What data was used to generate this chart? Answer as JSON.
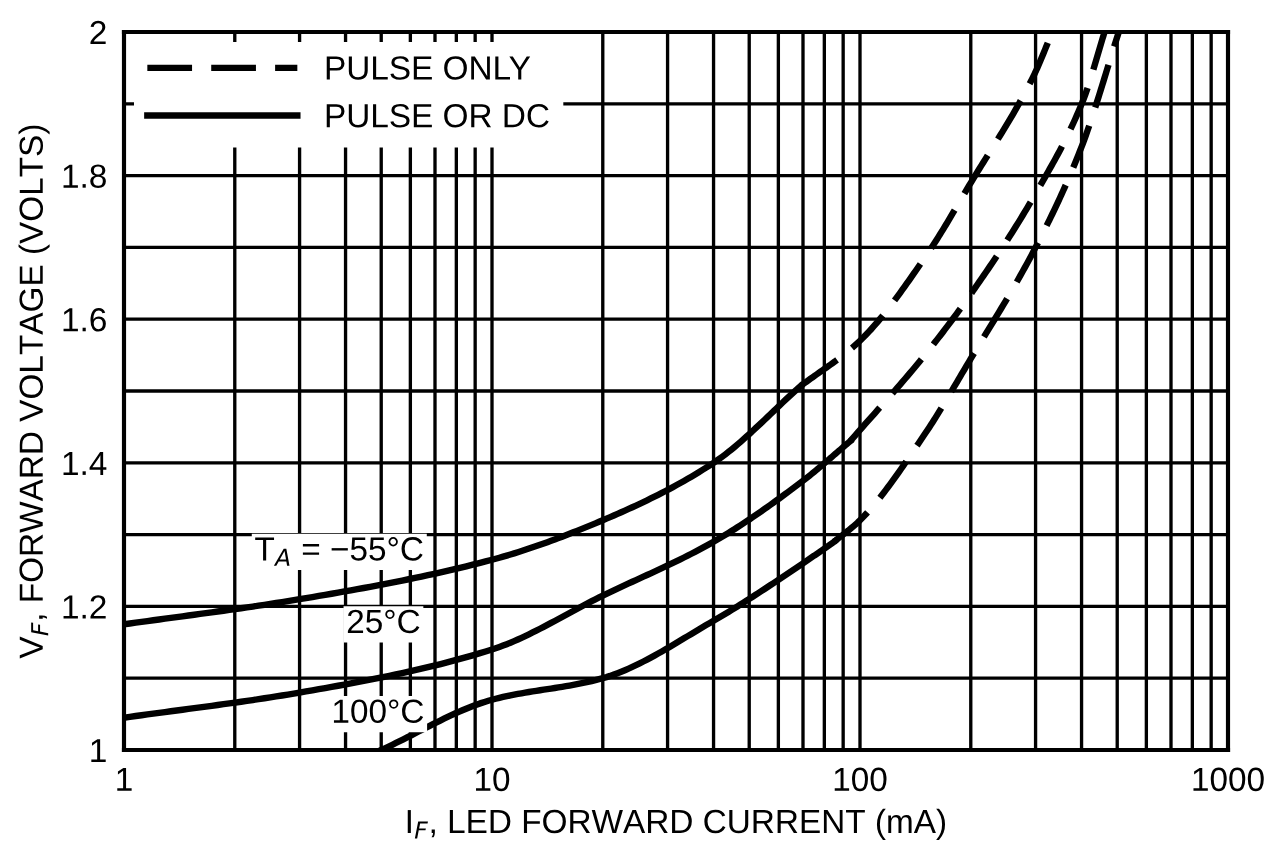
{
  "chart_data": {
    "type": "line",
    "xlabel": "I$_{F}$, LED FORWARD CURRENT (mA)",
    "ylabel": "V$_{F}$, FORWARD VOLTAGE (VOLTS)",
    "log": "x",
    "xlim": [
      1,
      1000
    ],
    "ylim": [
      1,
      2
    ],
    "xticks": [
      1,
      {
        "value": 2,
        "label": null
      },
      {
        "value": 3,
        "label": null
      },
      {
        "value": 4,
        "label": null
      },
      {
        "value": 5,
        "label": null
      },
      {
        "value": 6,
        "label": null
      },
      {
        "value": 7,
        "label": null
      },
      {
        "value": 8,
        "label": null
      },
      {
        "value": 9,
        "label": null
      },
      10,
      {
        "value": 20,
        "label": null
      },
      {
        "value": 30,
        "label": null
      },
      {
        "value": 40,
        "label": null
      },
      {
        "value": 50,
        "label": null
      },
      {
        "value": 60,
        "label": null
      },
      {
        "value": 70,
        "label": null
      },
      {
        "value": 80,
        "label": null
      },
      {
        "value": 90,
        "label": null
      },
      100,
      {
        "value": 200,
        "label": null
      },
      {
        "value": 300,
        "label": null
      },
      {
        "value": 400,
        "label": null
      },
      {
        "value": 500,
        "label": null
      },
      {
        "value": 600,
        "label": null
      },
      {
        "value": 700,
        "label": null
      },
      {
        "value": 800,
        "label": null
      },
      {
        "value": 900,
        "label": null
      },
      1000
    ],
    "yticks": [
      1,
      {
        "value": 1.1,
        "label": null
      },
      1.2,
      {
        "value": 1.3,
        "label": null
      },
      1.4,
      {
        "value": 1.5,
        "label": null
      },
      1.6,
      {
        "value": 1.7,
        "label": null
      },
      1.8,
      {
        "value": 1.9,
        "label": null
      },
      2
    ],
    "grid": true,
    "legend": "top left",
    "series": [
      {
        "name": "PULSE ONLY",
        "color": "#000000",
        "line_style": "dashed",
        "x": [
          69,
          100,
          152,
          200,
          297,
          333
        ],
        "values": [
          1.507,
          1.57,
          1.69,
          1.79,
          1.94,
          2.0
        ]
      },
      {
        "name": "PULSE OR DC",
        "color": "#000000",
        "line_style": "solid",
        "x": [
          1,
          3,
          10,
          20,
          40,
          69
        ],
        "values": [
          1.175,
          1.21,
          1.265,
          1.32,
          1.4,
          1.507
        ]
      },
      {
        "color": "#000000",
        "line_style": "solid",
        "x": [
          1,
          3,
          10,
          20,
          40,
          70,
          94
        ],
        "values": [
          1.045,
          1.08,
          1.14,
          1.215,
          1.29,
          1.375,
          1.43
        ]
      },
      {
        "color": "#000000",
        "line_style": "dashed",
        "x": [
          94,
          150,
          200,
          300,
          404,
          462
        ],
        "values": [
          1.43,
          1.55,
          1.635,
          1.775,
          1.905,
          2.0
        ]
      },
      {
        "color": "#000000",
        "line_style": "solid",
        "x": [
          5,
          10,
          20,
          40,
          70,
          85
        ],
        "values": [
          1.0,
          1.07,
          1.1,
          1.18,
          1.26,
          1.29
        ]
      },
      {
        "color": "#000000",
        "line_style": "dashed",
        "x": [
          85,
          100,
          150,
          200,
          300,
          400,
          505
        ],
        "values": [
          1.29,
          1.32,
          1.44,
          1.545,
          1.7,
          1.84,
          2.0
        ]
      }
    ],
    "annotations": [
      "T$_{A}$ = −55°C",
      "25°C",
      "100°C"
    ]
  }
}
